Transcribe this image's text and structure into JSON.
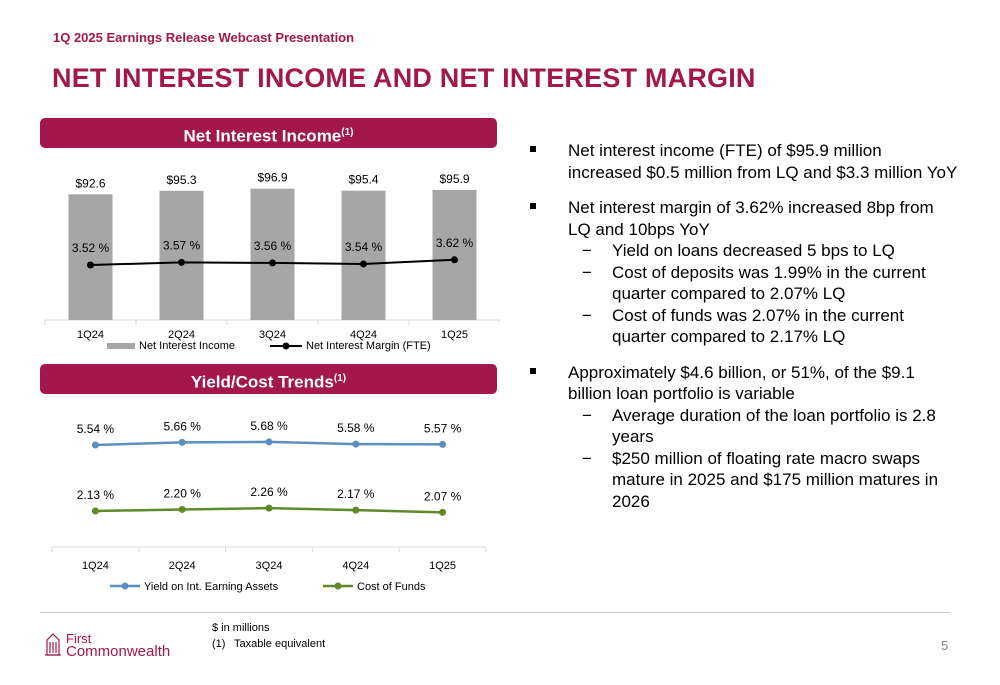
{
  "header": {
    "subtitle": "1Q 2025 Earnings Release Webcast Presentation",
    "title": "NET INTEREST INCOME AND NET INTEREST MARGIN"
  },
  "banners": {
    "nii": {
      "label": "Net Interest Income",
      "sup": "(1)"
    },
    "yield": {
      "label": "Yield/Cost Trends",
      "sup": "(1)"
    }
  },
  "chart_data": [
    {
      "type": "bar",
      "categories": [
        "1Q24",
        "2Q24",
        "3Q24",
        "4Q24",
        "1Q25"
      ],
      "series": [
        {
          "name": "Net Interest Income",
          "type": "bar",
          "values": [
            92.6,
            95.3,
            96.9,
            95.4,
            95.9
          ],
          "labels": [
            "$92.6",
            "$95.3",
            "$96.9",
            "$95.4",
            "$95.9"
          ],
          "color": "#a6a6a6"
        },
        {
          "name": "Net Interest Margin (FTE)",
          "type": "line",
          "values": [
            3.52,
            3.57,
            3.56,
            3.54,
            3.62
          ],
          "labels": [
            "3.52 %",
            "3.57 %",
            "3.56 %",
            "3.54 %",
            "3.62 %"
          ],
          "color": "#000000"
        }
      ],
      "legend": "bottom"
    },
    {
      "type": "line",
      "categories": [
        "1Q24",
        "2Q24",
        "3Q24",
        "4Q24",
        "1Q25"
      ],
      "series": [
        {
          "name": "Yield on Int. Earning Assets",
          "values": [
            5.54,
            5.66,
            5.68,
            5.58,
            5.57
          ],
          "labels": [
            "5.54 %",
            "5.66 %",
            "5.68 %",
            "5.58 %",
            "5.57 %"
          ],
          "color": "#5b8fbd"
        },
        {
          "name": "Cost of Funds",
          "values": [
            2.13,
            2.2,
            2.26,
            2.17,
            2.07
          ],
          "labels": [
            "2.13 %",
            "2.20 %",
            "2.26 %",
            "2.17 %",
            "2.07 %"
          ],
          "color": "#5e8a2a"
        }
      ],
      "legend": "bottom"
    }
  ],
  "bullets": [
    {
      "text": "Net interest income (FTE) of $95.9 million increased $0.5 million from LQ and $3.3 million YoY",
      "subs": []
    },
    {
      "text": "Net interest margin of 3.62% increased 8bp from LQ and 10bps YoY",
      "subs": [
        "Yield on loans decreased 5 bps to LQ",
        "Cost of deposits was 1.99% in the current quarter compared to 2.07% LQ",
        "Cost of funds was 2.07% in the current quarter compared to 2.17% LQ"
      ]
    },
    {
      "text": "Approximately $4.6 billion, or 51%, of the $9.1 billion loan portfolio is variable",
      "subs": [
        "Average duration of the loan portfolio is 2.8 years",
        "$250 million of floating rate macro swaps mature in 2025 and $175 million matures in 2026"
      ]
    }
  ],
  "footer": {
    "note1": "$ in millions",
    "note2_num": "(1)",
    "note2": "Taxable equivalent",
    "logo_top": "First",
    "logo_bottom": "Commonwealth",
    "page": "5"
  },
  "colors": {
    "brand": "#a3174a",
    "bar": "#a6a6a6",
    "yield": "#5b8fbd",
    "cost": "#5e8a2a"
  }
}
